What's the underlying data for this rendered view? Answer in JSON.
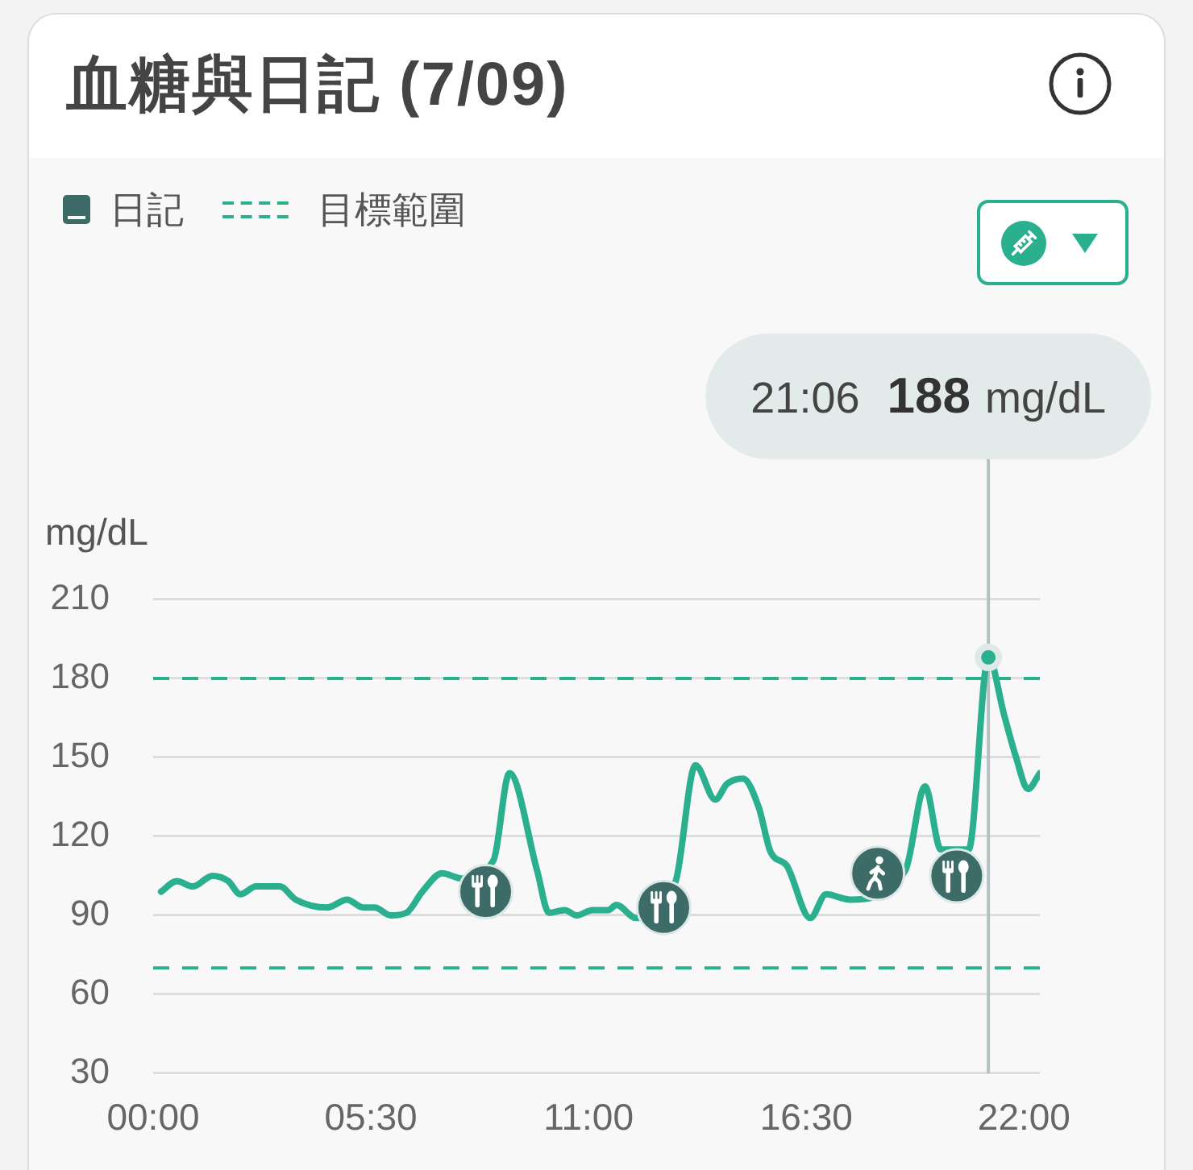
{
  "chart_data": {
    "type": "line",
    "title": "血糖與日記 (7/09)",
    "ylabel": "mg/dL",
    "xlim": [
      0,
      22.4
    ],
    "xticks": [
      {
        "value": 0,
        "label": "00:00"
      },
      {
        "value": 5.5,
        "label": "05:30"
      },
      {
        "value": 11,
        "label": "11:00"
      },
      {
        "value": 16.5,
        "label": "16:30"
      },
      {
        "value": 22,
        "label": "22:00"
      }
    ],
    "ylim": [
      30,
      210
    ],
    "yticks": [
      30,
      60,
      90,
      120,
      150,
      180,
      210
    ],
    "grid": "y",
    "legend": "top left",
    "series": [
      {
        "color": "#2bb08f",
        "x": [
          0.2,
          0.6,
          1.0,
          1.5,
          1.9,
          2.2,
          2.6,
          3.2,
          3.6,
          4.4,
          4.9,
          5.3,
          5.6,
          6.0,
          6.4,
          6.8,
          7.3,
          7.8,
          8.6,
          9.0,
          9.7,
          10.0,
          10.4,
          10.7,
          11.1,
          11.5,
          11.7,
          12.2,
          13.2,
          13.7,
          14.2,
          14.5,
          14.9,
          15.3,
          15.6,
          16.0,
          16.6,
          17.0,
          17.6,
          19.0,
          19.5,
          19.9,
          20.6,
          21.1,
          21.5,
          21.8,
          22.1,
          22.4
        ],
        "values": [
          99,
          103,
          101,
          105,
          103,
          98,
          101,
          101,
          96,
          93,
          96,
          93,
          93,
          90,
          91,
          99,
          106,
          104,
          111,
          144,
          107,
          91,
          92,
          90,
          92,
          92,
          94,
          89,
          103,
          147,
          134,
          140,
          142,
          131,
          114,
          109,
          89,
          98,
          96,
          107,
          139,
          115,
          115,
          188,
          166,
          150,
          138,
          144
        ]
      },
      {
        "name": "日記",
        "type": "scatter",
        "marker": "circle",
        "color": "#3d6b67",
        "x": [
          8.4,
          12.9,
          18.3,
          20.3
        ],
        "values": [
          99,
          93,
          106,
          105
        ]
      }
    ],
    "ref_lines": [
      {
        "axis": "y",
        "value": 180,
        "label": "目標範圍",
        "color": "#2bb08f",
        "line_style": "dashed"
      },
      {
        "axis": "y",
        "value": 70,
        "color": "#2bb08f",
        "line_style": "dashed"
      },
      {
        "axis": "x",
        "value": 21.1,
        "label": "21:06 188 mg/dL",
        "color": "#b3c2c0"
      }
    ]
  }
}
